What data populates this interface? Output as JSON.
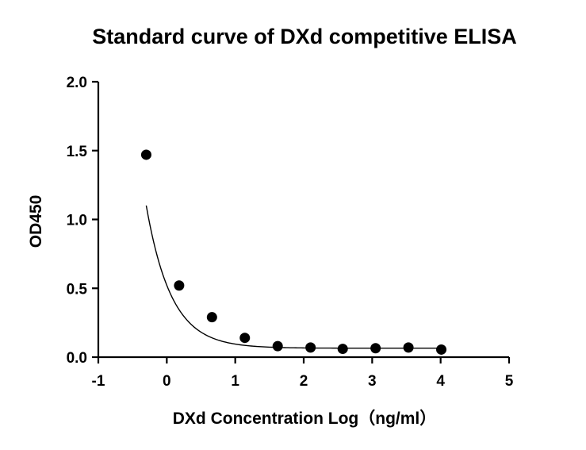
{
  "chart_data": {
    "type": "scatter",
    "title": "Standard curve of DXd competitive ELISA",
    "xlabel": "DXd Concentration Log（ng/ml）",
    "ylabel": "OD450",
    "xlim": [
      -1,
      5
    ],
    "ylim": [
      0,
      2
    ],
    "xticks": [
      "-1",
      "0",
      "1",
      "2",
      "3",
      "4",
      "5"
    ],
    "yticks": [
      "0.0",
      "0.5",
      "1.0",
      "1.5",
      "2.0"
    ],
    "grid": false,
    "legend": "none",
    "series": [
      {
        "x": [
          -0.3,
          0.18,
          0.66,
          1.14,
          1.62,
          2.1,
          2.57,
          3.05,
          3.53,
          4.01
        ],
        "y": [
          1.47,
          0.52,
          0.29,
          0.14,
          0.08,
          0.07,
          0.06,
          0.065,
          0.07,
          0.055
        ],
        "fit": "exponential-decay",
        "fit_params": {
          "bottom": 0.065,
          "span": 0.4568,
          "rate": 2.73
        }
      }
    ],
    "colors": {
      "marker": "#000000",
      "line": "#000000",
      "axis": "#000000"
    }
  }
}
